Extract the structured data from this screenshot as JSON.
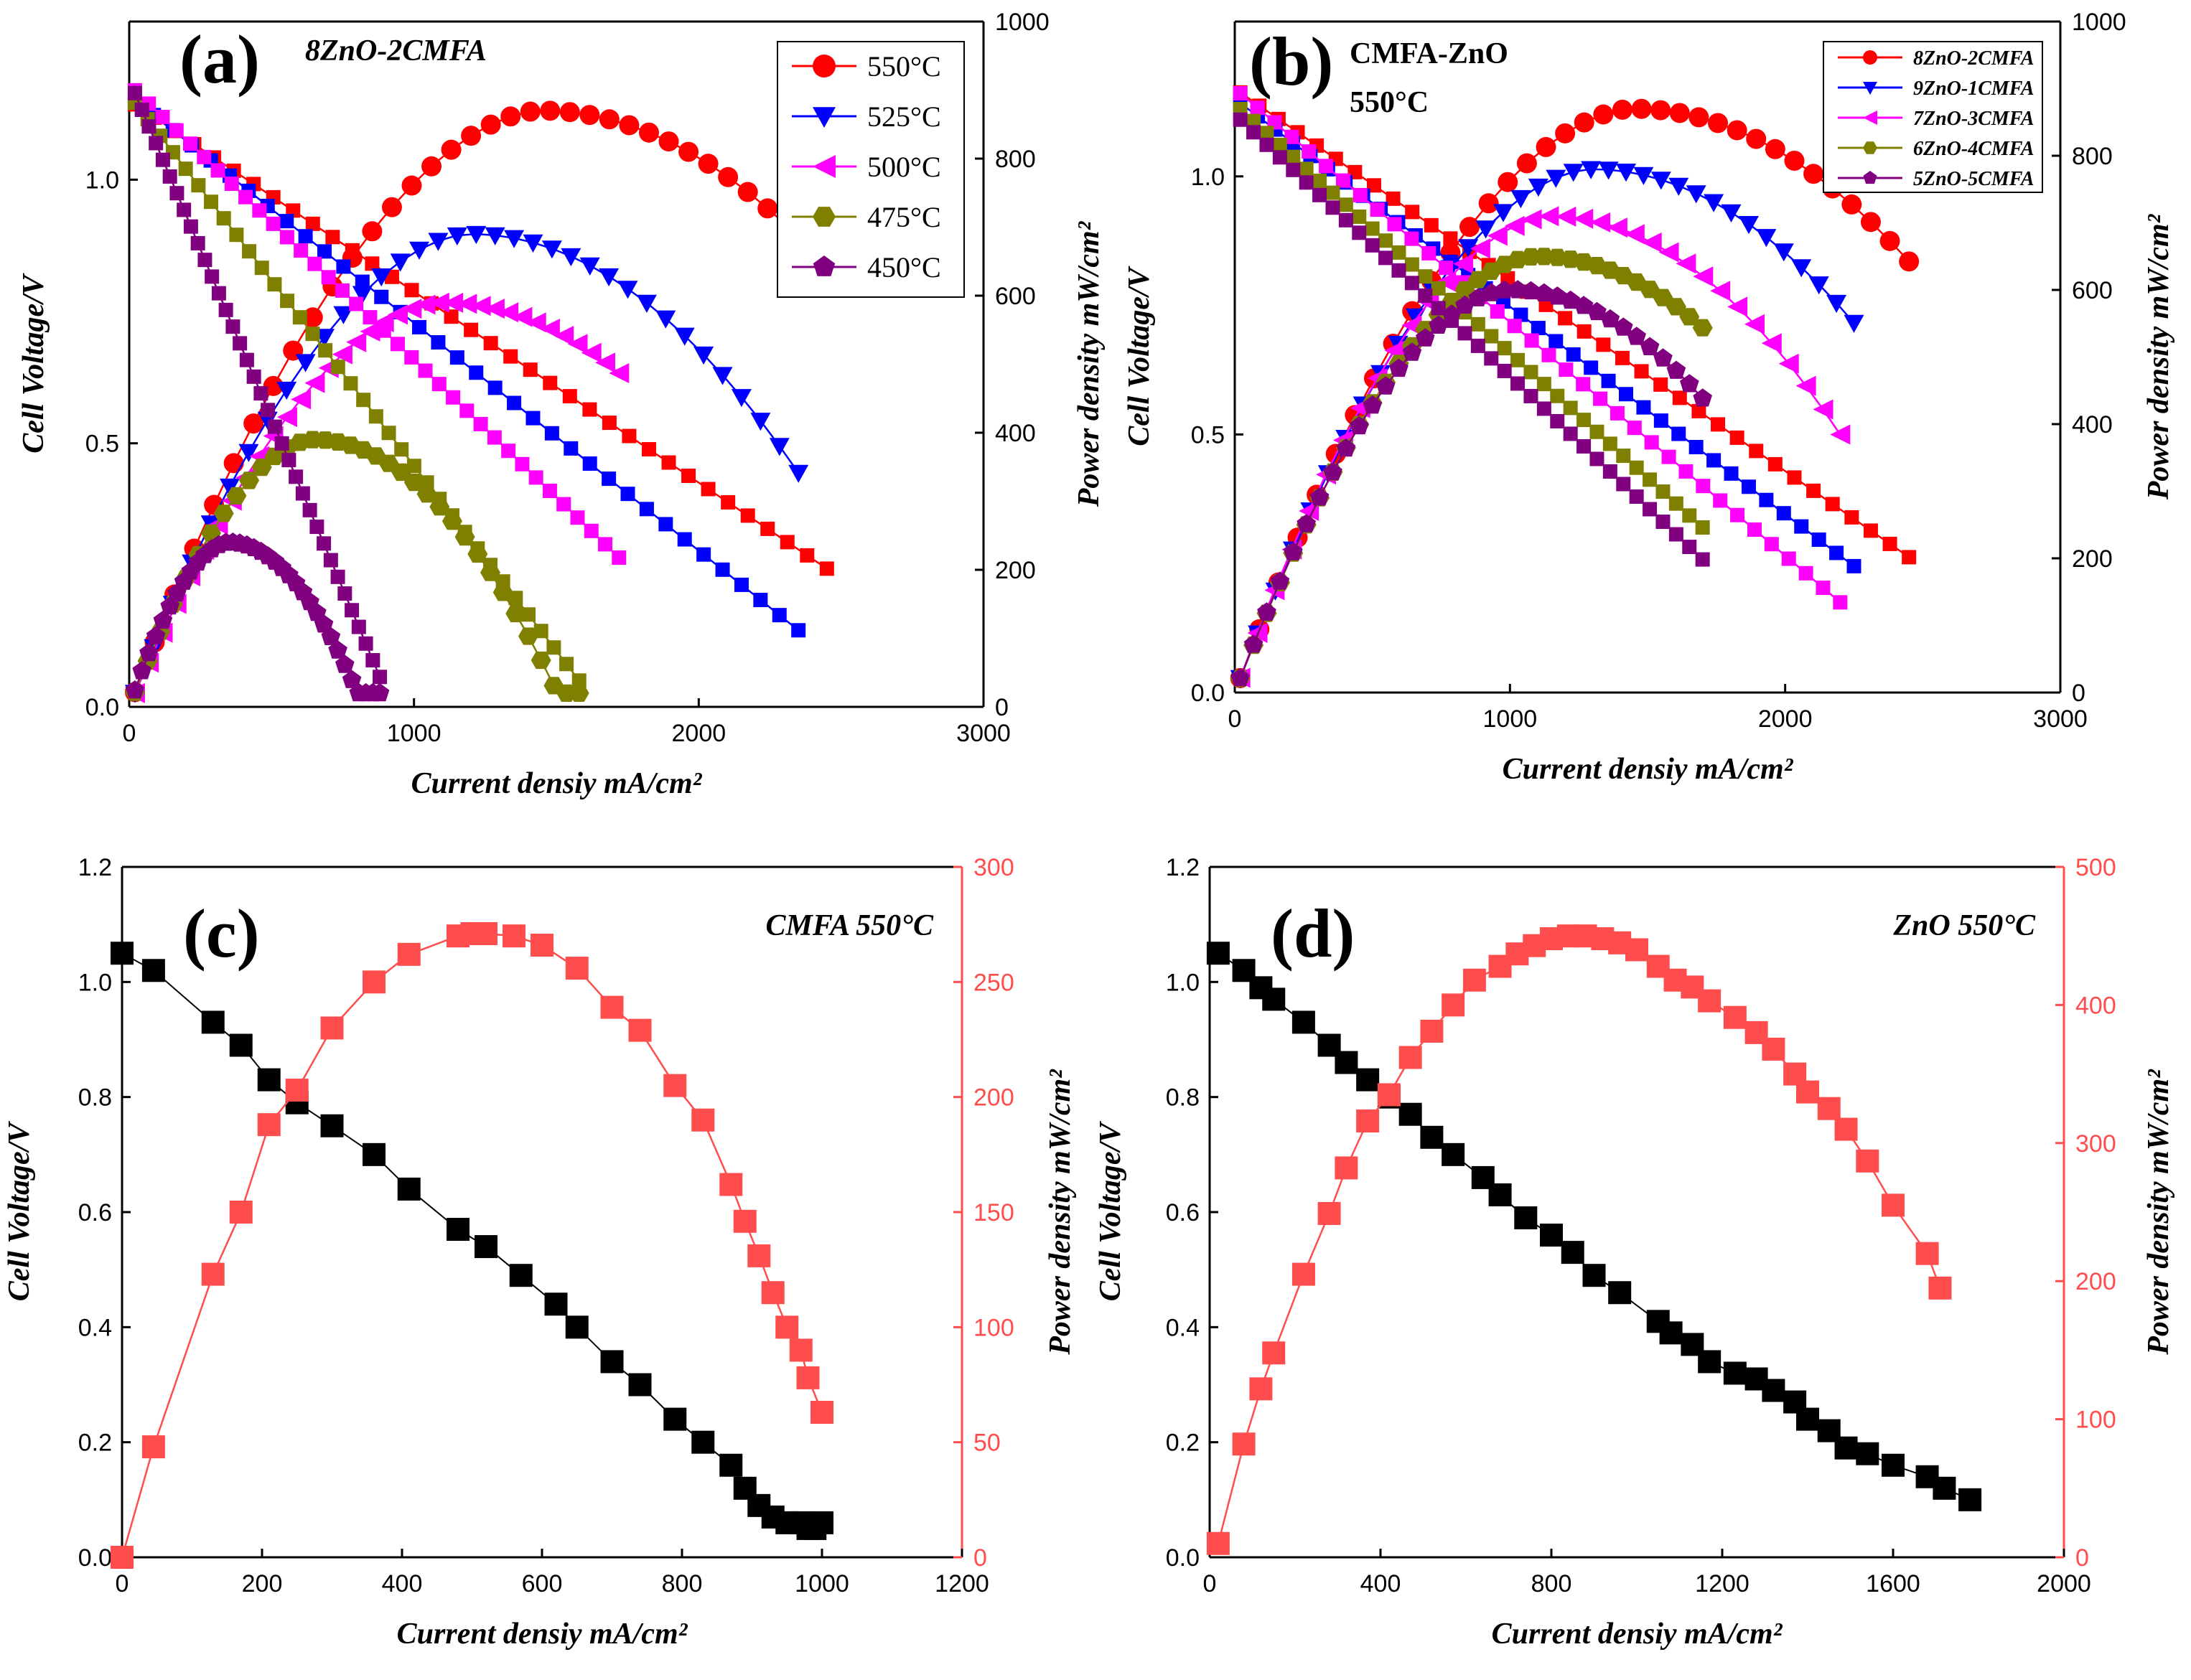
{
  "chart_data": [
    {
      "panel": "a",
      "type": "line",
      "panel_label": "(a)",
      "annotation": "8ZnO-2CMFA",
      "xlabel": "Current densiy mA/cm²",
      "ylabel": "Cell Voltage/V",
      "y2label": "Power density mW/cm²",
      "xlim": [
        0,
        3000
      ],
      "ylim": [
        0,
        1.3
      ],
      "y2lim": [
        0,
        1000
      ],
      "xticks": [
        "0",
        "1000",
        "2000",
        "3000"
      ],
      "yticks": [
        "0.0",
        "0.5",
        "1.0"
      ],
      "y2ticks": [
        "0",
        "200",
        "400",
        "600",
        "800",
        "1000"
      ],
      "legend_position": "top-right",
      "series": [
        {
          "name": "550°C",
          "temp": "550",
          "color": "#ff0000",
          "marker": "circle",
          "jmax": 2450,
          "v0": 1.15,
          "power_peak_x": 1450,
          "power_peak": 870
        },
        {
          "name": "525°C",
          "temp": "525",
          "color": "#0000ff",
          "marker": "triangle-down",
          "jmax": 2350,
          "v0": 1.16,
          "power_peak_x": 1200,
          "power_peak": 690
        },
        {
          "name": "500°C",
          "temp": "500",
          "color": "#ff00ff",
          "marker": "triangle-left",
          "jmax": 1720,
          "v0": 1.18,
          "power_peak_x": 1100,
          "power_peak": 590
        },
        {
          "name": "475°C",
          "temp": "475",
          "color": "#808000",
          "marker": "hexagon",
          "jmax": 1580,
          "v0": 1.16,
          "power_peak_x": 650,
          "power_peak": 390
        },
        {
          "name": "450°C",
          "temp": "450",
          "color": "#800080",
          "marker": "pentagon",
          "jmax": 880,
          "v0": 1.19,
          "power_peak_x": 350,
          "power_peak": 240
        }
      ]
    },
    {
      "panel": "b",
      "type": "line",
      "panel_label": "(b)",
      "annotation": "CMFA-ZnO",
      "annotation2": "550°C",
      "xlabel": "Current densiy mA/cm²",
      "ylabel": "Cell Voltage/V",
      "y2label": "Power density mW/cm²",
      "xlim": [
        0,
        3000
      ],
      "ylim": [
        0,
        1.3
      ],
      "y2lim": [
        0,
        1000
      ],
      "xticks": [
        "0",
        "1000",
        "2000",
        "3000"
      ],
      "yticks": [
        "0.0",
        "0.5",
        "1.0"
      ],
      "y2ticks": [
        "0",
        "200",
        "400",
        "600",
        "800",
        "1000"
      ],
      "legend_position": "top-right",
      "series": [
        {
          "name": "8ZnO-2CMFA",
          "color": "#ff0000",
          "marker": "circle",
          "jmax": 2450,
          "v0": 1.17,
          "power_peak_x": 1450,
          "power_peak": 870
        },
        {
          "name": "9ZnO-1CMFA",
          "color": "#0000ff",
          "marker": "triangle-down",
          "jmax": 2250,
          "v0": 1.15,
          "power_peak_x": 1300,
          "power_peak": 780
        },
        {
          "name": "7ZnO-3CMFA",
          "color": "#ff00ff",
          "marker": "triangle-left",
          "jmax": 2200,
          "v0": 1.17,
          "power_peak_x": 1150,
          "power_peak": 710
        },
        {
          "name": "6ZnO-4CMFA",
          "color": "#808000",
          "marker": "hexagon",
          "jmax": 1700,
          "v0": 1.14,
          "power_peak_x": 1100,
          "power_peak": 650
        },
        {
          "name": "5ZnO-5CMFA",
          "color": "#800080",
          "marker": "pentagon",
          "jmax": 1700,
          "v0": 1.12,
          "power_peak_x": 1000,
          "power_peak": 600
        }
      ]
    },
    {
      "panel": "c",
      "type": "line",
      "panel_label": "(c)",
      "annotation": "CMFA  550°C",
      "xlabel": "Current densiy mA/cm²",
      "ylabel": "Cell Voltage/V",
      "y2label": "Power density mW/cm²",
      "xlim": [
        0,
        1200
      ],
      "ylim": [
        0,
        1.2
      ],
      "y2lim": [
        0,
        300
      ],
      "xticks": [
        "0",
        "200",
        "400",
        "600",
        "800",
        "1000",
        "1200"
      ],
      "yticks": [
        "0.0",
        "0.2",
        "0.4",
        "0.6",
        "0.8",
        "1.0",
        "1.2"
      ],
      "y2ticks": [
        "0",
        "50",
        "100",
        "150",
        "200",
        "250",
        "300"
      ],
      "voltage": {
        "x": [
          0,
          45,
          130,
          170,
          210,
          250,
          300,
          360,
          410,
          480,
          520,
          570,
          620,
          650,
          700,
          740,
          790,
          830,
          870,
          890,
          910,
          930,
          950,
          970,
          980,
          990,
          1000
        ],
        "y": [
          1.05,
          1.02,
          0.93,
          0.89,
          0.83,
          0.79,
          0.75,
          0.7,
          0.64,
          0.57,
          0.54,
          0.49,
          0.44,
          0.4,
          0.34,
          0.3,
          0.24,
          0.2,
          0.16,
          0.12,
          0.09,
          0.07,
          0.06,
          0.06,
          0.05,
          0.05,
          0.06
        ]
      },
      "power": {
        "x": [
          0,
          45,
          130,
          170,
          210,
          250,
          300,
          360,
          410,
          480,
          500,
          520,
          560,
          600,
          650,
          700,
          740,
          790,
          830,
          870,
          890,
          910,
          930,
          950,
          970,
          980,
          1000
        ],
        "y": [
          0,
          48,
          123,
          150,
          188,
          203,
          230,
          250,
          262,
          270,
          271,
          271,
          270,
          266,
          256,
          239,
          229,
          205,
          190,
          162,
          146,
          131,
          115,
          100,
          90,
          78,
          63
        ]
      }
    },
    {
      "panel": "d",
      "type": "line",
      "panel_label": "(d)",
      "annotation": "ZnO  550°C",
      "xlabel": "Current densiy mA/cm²",
      "ylabel": "Cell Voltage/V",
      "y2label": "Power density mW/cm²",
      "xlim": [
        0,
        2000
      ],
      "ylim": [
        0,
        1.2
      ],
      "y2lim": [
        0,
        500
      ],
      "xticks": [
        "0",
        "400",
        "800",
        "1200",
        "1600",
        "2000"
      ],
      "yticks": [
        "0.0",
        "0.2",
        "0.4",
        "0.6",
        "0.8",
        "1.0",
        "1.2"
      ],
      "y2ticks": [
        "0",
        "100",
        "200",
        "300",
        "400",
        "500"
      ],
      "voltage": {
        "x": [
          20,
          80,
          120,
          150,
          220,
          280,
          320,
          370,
          420,
          470,
          520,
          570,
          640,
          680,
          740,
          800,
          850,
          900,
          960,
          1050,
          1080,
          1130,
          1170,
          1230,
          1280,
          1320,
          1370,
          1400,
          1450,
          1490,
          1540,
          1600,
          1680,
          1720,
          1780
        ],
        "y": [
          1.05,
          1.02,
          0.99,
          0.97,
          0.93,
          0.89,
          0.86,
          0.83,
          0.8,
          0.77,
          0.73,
          0.7,
          0.66,
          0.63,
          0.59,
          0.56,
          0.53,
          0.49,
          0.46,
          0.41,
          0.39,
          0.37,
          0.34,
          0.32,
          0.31,
          0.29,
          0.27,
          0.24,
          0.22,
          0.19,
          0.18,
          0.16,
          0.14,
          0.12,
          0.1
        ]
      },
      "power": {
        "x": [
          20,
          80,
          120,
          150,
          220,
          280,
          320,
          370,
          420,
          470,
          520,
          570,
          620,
          680,
          720,
          760,
          800,
          840,
          880,
          920,
          960,
          1000,
          1050,
          1090,
          1130,
          1170,
          1230,
          1280,
          1320,
          1370,
          1400,
          1450,
          1490,
          1540,
          1600,
          1680,
          1710
        ],
        "y": [
          10,
          82,
          122,
          148,
          205,
          249,
          282,
          316,
          335,
          362,
          381,
          400,
          418,
          428,
          437,
          443,
          448,
          450,
          450,
          448,
          445,
          440,
          428,
          418,
          413,
          403,
          391,
          380,
          368,
          350,
          337,
          325,
          310,
          287,
          255,
          220,
          195
        ]
      }
    }
  ]
}
